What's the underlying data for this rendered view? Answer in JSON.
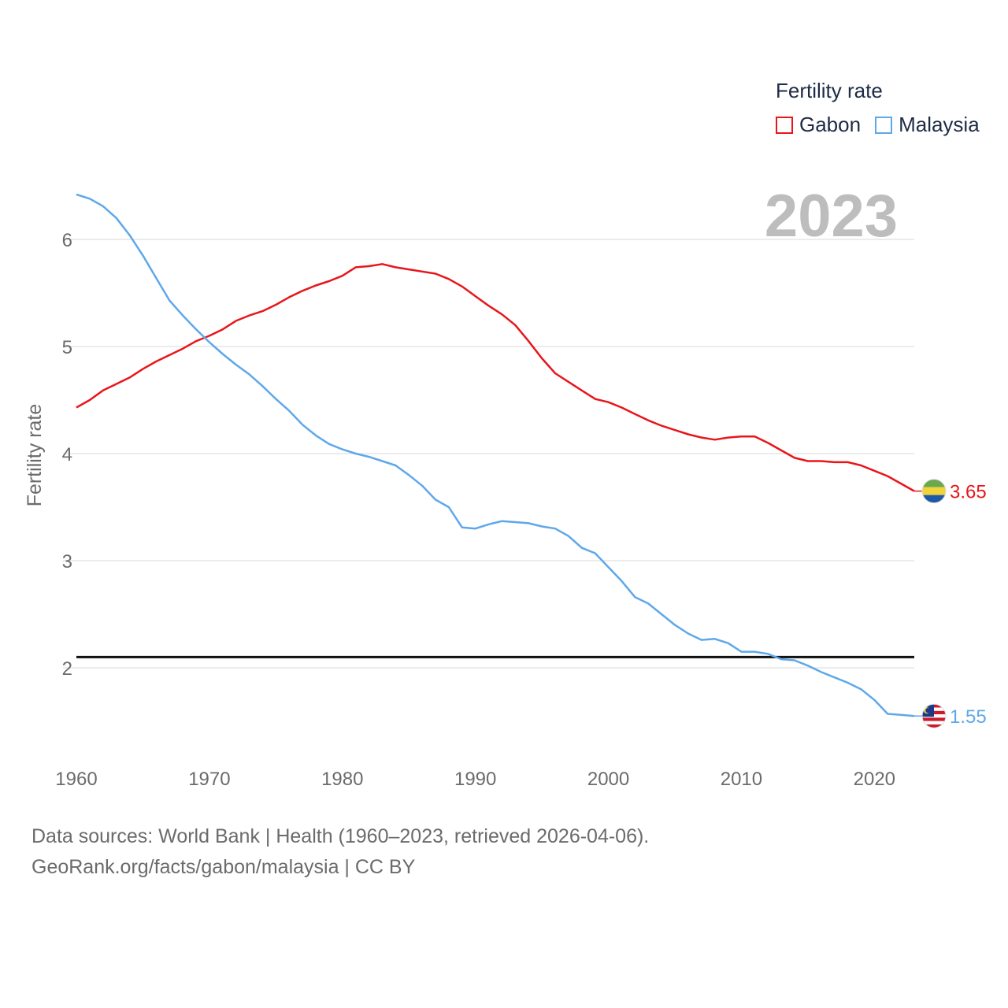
{
  "legend": {
    "title": "Fertility rate",
    "items": [
      {
        "label": "Gabon",
        "color": "#e8161b"
      },
      {
        "label": "Malaysia",
        "color": "#5ea8ea"
      }
    ]
  },
  "footer": {
    "line1": "Data sources: World Bank | Health (1960–2023, retrieved 2026-04-06).",
    "line2": "GeoRank.org/facts/gabon/malaysia | CC BY"
  },
  "chart_data": {
    "type": "line",
    "ylabel": "Fertility rate",
    "year_label": "2023",
    "xlim": [
      1960,
      2023
    ],
    "ylim": [
      1.2,
      6.5
    ],
    "x_ticks": [
      1960,
      1970,
      1980,
      1990,
      2000,
      2010,
      2020
    ],
    "y_ticks": [
      2,
      3,
      4,
      5,
      6
    ],
    "reference_line": 2.1,
    "x": [
      1960,
      1961,
      1962,
      1963,
      1964,
      1965,
      1966,
      1967,
      1968,
      1969,
      1970,
      1971,
      1972,
      1973,
      1974,
      1975,
      1976,
      1977,
      1978,
      1979,
      1980,
      1981,
      1982,
      1983,
      1984,
      1985,
      1986,
      1987,
      1988,
      1989,
      1990,
      1991,
      1992,
      1993,
      1994,
      1995,
      1996,
      1997,
      1998,
      1999,
      2000,
      2001,
      2002,
      2003,
      2004,
      2005,
      2006,
      2007,
      2008,
      2009,
      2010,
      2011,
      2012,
      2013,
      2014,
      2015,
      2016,
      2017,
      2018,
      2019,
      2020,
      2021,
      2022,
      2023
    ],
    "series": [
      {
        "name": "Gabon",
        "color": "#e8161b",
        "end_label": "3.65",
        "values": [
          4.43,
          4.5,
          4.59,
          4.65,
          4.71,
          4.79,
          4.86,
          4.92,
          4.98,
          5.05,
          5.1,
          5.16,
          5.24,
          5.29,
          5.33,
          5.39,
          5.46,
          5.52,
          5.57,
          5.61,
          5.66,
          5.74,
          5.75,
          5.77,
          5.74,
          5.72,
          5.7,
          5.68,
          5.63,
          5.56,
          5.47,
          5.38,
          5.3,
          5.2,
          5.05,
          4.89,
          4.75,
          4.67,
          4.59,
          4.51,
          4.48,
          4.43,
          4.37,
          4.31,
          4.26,
          4.22,
          4.18,
          4.15,
          4.13,
          4.15,
          4.16,
          4.16,
          4.1,
          4.03,
          3.96,
          3.93,
          3.93,
          3.92,
          3.92,
          3.89,
          3.84,
          3.79,
          3.72,
          3.65
        ]
      },
      {
        "name": "Malaysia",
        "color": "#5ea8ea",
        "end_label": "1.55",
        "values": [
          6.42,
          6.38,
          6.31,
          6.2,
          6.04,
          5.85,
          5.64,
          5.43,
          5.29,
          5.16,
          5.04,
          4.93,
          4.83,
          4.74,
          4.63,
          4.51,
          4.4,
          4.27,
          4.17,
          4.09,
          4.04,
          4.0,
          3.97,
          3.93,
          3.89,
          3.8,
          3.7,
          3.57,
          3.5,
          3.31,
          3.3,
          3.34,
          3.37,
          3.36,
          3.35,
          3.32,
          3.3,
          3.23,
          3.12,
          3.07,
          2.94,
          2.81,
          2.66,
          2.6,
          2.5,
          2.4,
          2.32,
          2.26,
          2.27,
          2.23,
          2.15,
          2.15,
          2.13,
          2.08,
          2.07,
          2.02,
          1.96,
          1.91,
          1.86,
          1.8,
          1.7,
          1.57,
          1.56,
          1.55
        ]
      }
    ]
  }
}
